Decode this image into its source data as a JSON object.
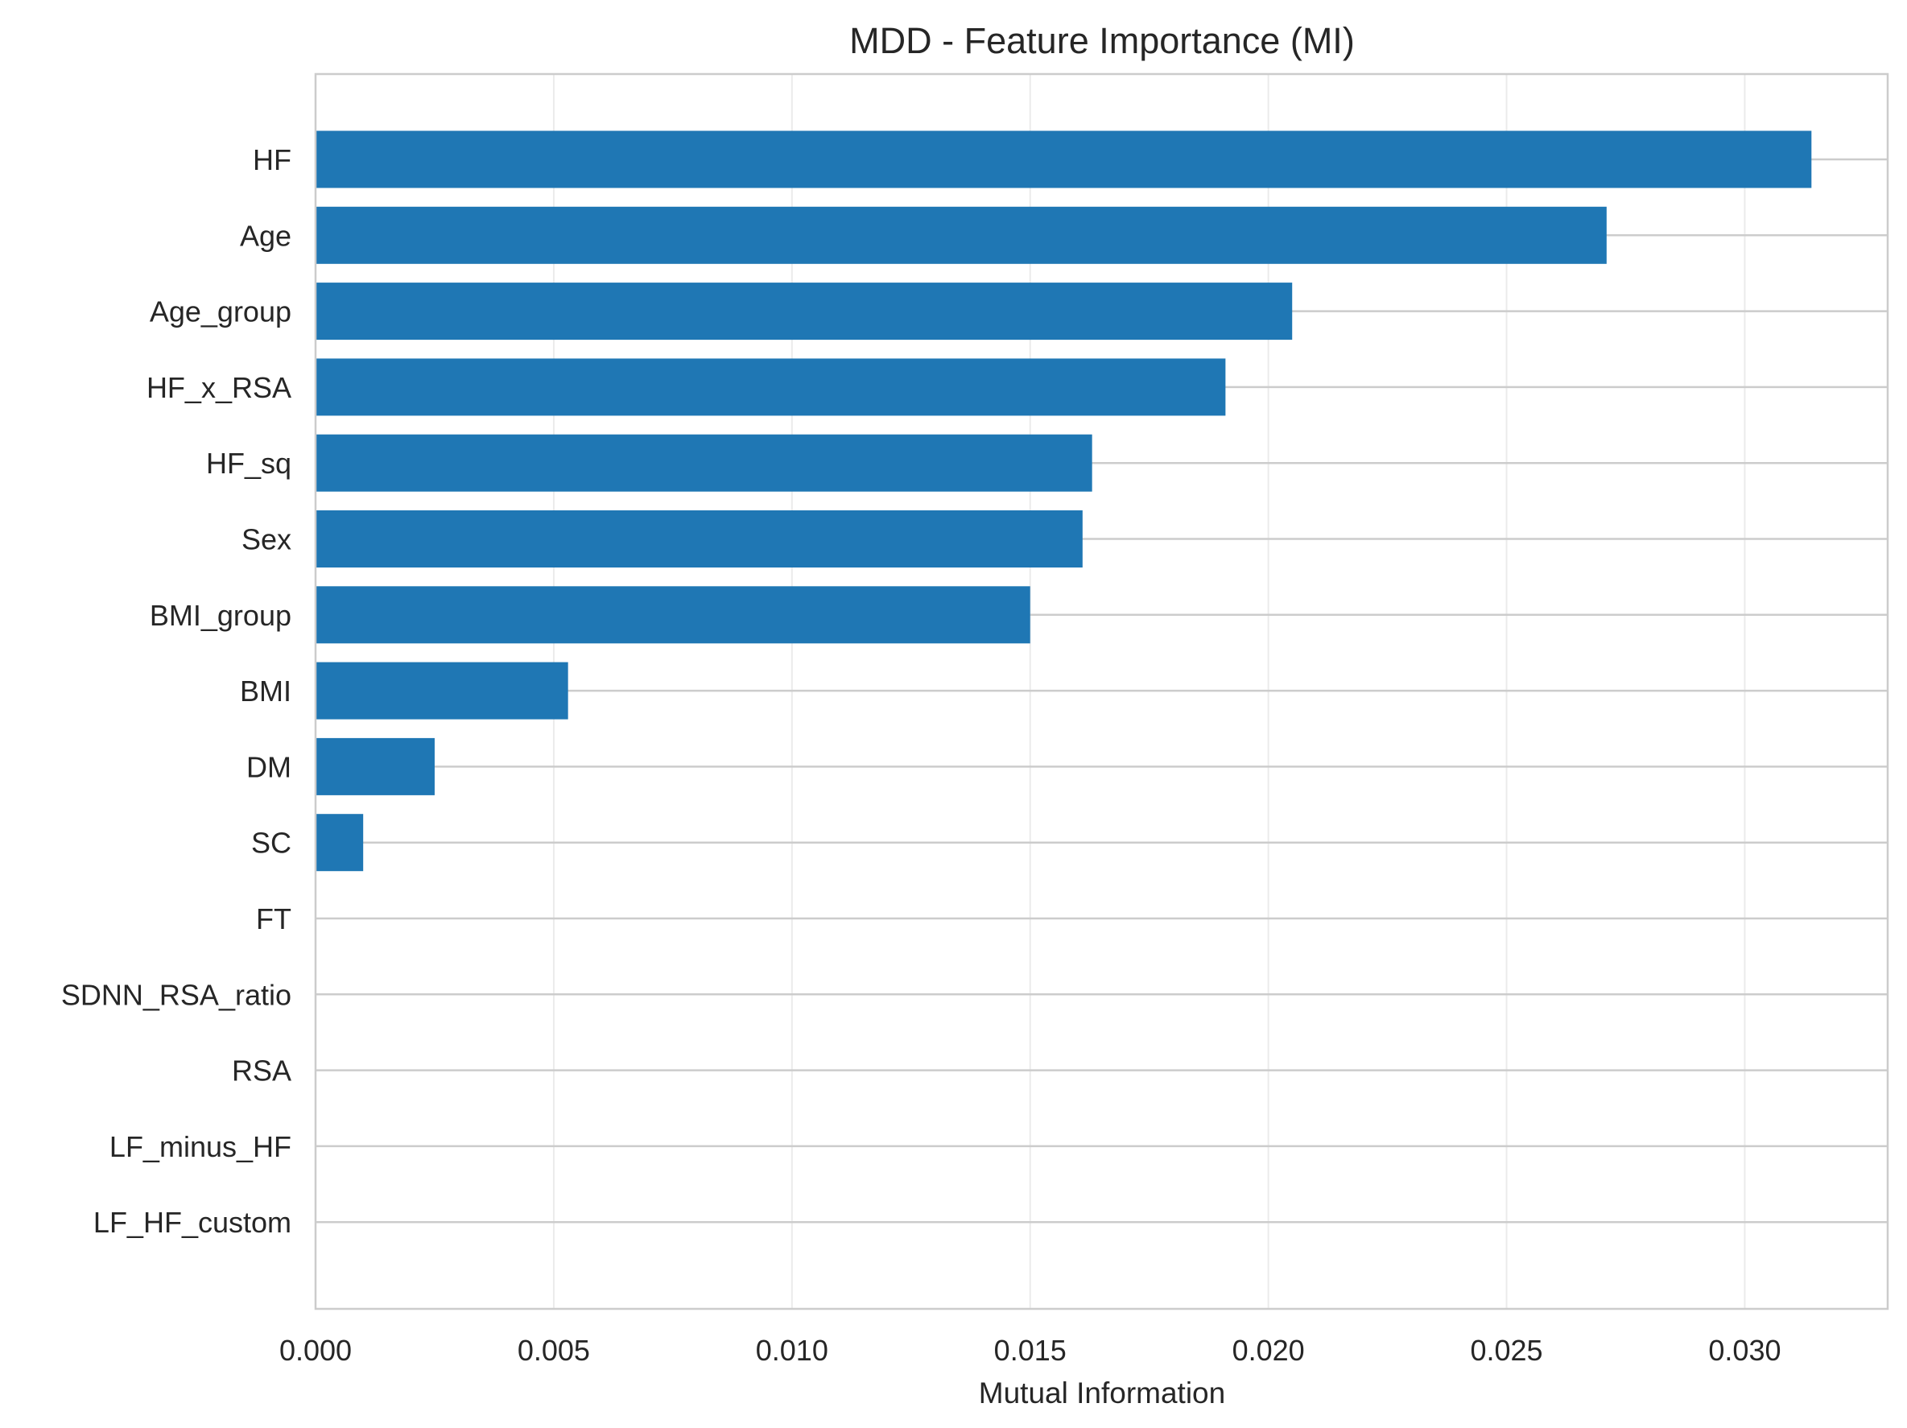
{
  "chart_data": {
    "type": "bar",
    "orientation": "horizontal",
    "title": "MDD - Feature Importance (MI)",
    "xlabel": "Mutual Information",
    "ylabel": "",
    "categories": [
      "HF",
      "Age",
      "Age_group",
      "HF_x_RSA",
      "HF_sq",
      "Sex",
      "BMI_group",
      "BMI",
      "DM",
      "SC",
      "FT",
      "SDNN_RSA_ratio",
      "RSA",
      "LF_minus_HF",
      "LF_HF_custom"
    ],
    "values": [
      0.0314,
      0.0271,
      0.0205,
      0.0191,
      0.0163,
      0.0161,
      0.015,
      0.0053,
      0.0025,
      0.001,
      0,
      0,
      0,
      0,
      0
    ],
    "xlim": [
      0,
      0.033
    ],
    "xticks": [
      "0.000",
      "0.005",
      "0.010",
      "0.015",
      "0.020",
      "0.025",
      "0.030"
    ],
    "xtick_values": [
      0,
      0.005,
      0.01,
      0.015,
      0.02,
      0.025,
      0.03
    ],
    "grid": true,
    "legend": "none",
    "colors": {
      "bar": "#1f77b4",
      "grid": "#cccccc",
      "frame": "#cccccc",
      "text": "#262626"
    }
  }
}
